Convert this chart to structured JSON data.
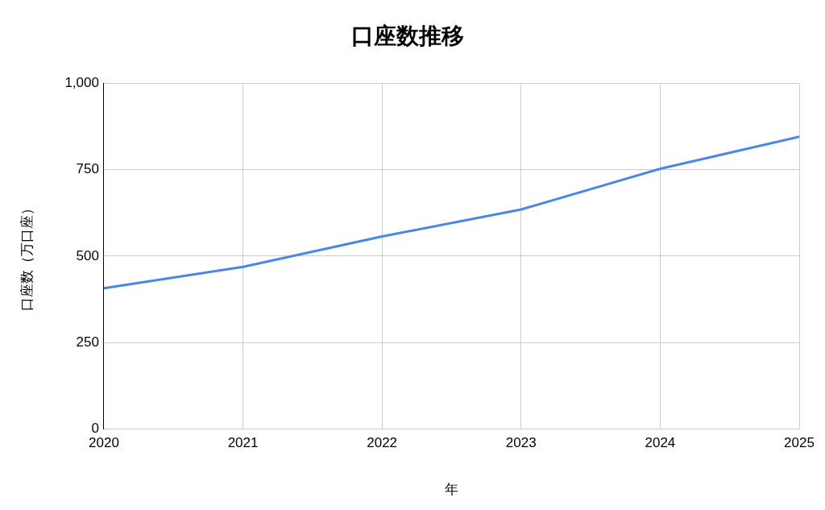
{
  "chart_data": {
    "type": "line",
    "title": "口座数推移",
    "xlabel": "年",
    "ylabel": "口座数（万口座）",
    "x": [
      2020,
      2021,
      2022,
      2023,
      2024,
      2025
    ],
    "series": [
      {
        "color": "#4a86e8",
        "values": [
          407,
          469,
          557,
          635,
          753,
          846
        ]
      }
    ],
    "xlim": [
      2020,
      2025
    ],
    "xticks": [
      2020,
      2021,
      2022,
      2023,
      2024,
      2025
    ],
    "ylim": [
      0,
      1000
    ],
    "yticks": [
      0,
      250,
      500,
      750,
      {
        "value": 1000,
        "label": "1,000"
      }
    ],
    "grid": true,
    "legend": false,
    "marker": "none",
    "line_style": "solid"
  }
}
